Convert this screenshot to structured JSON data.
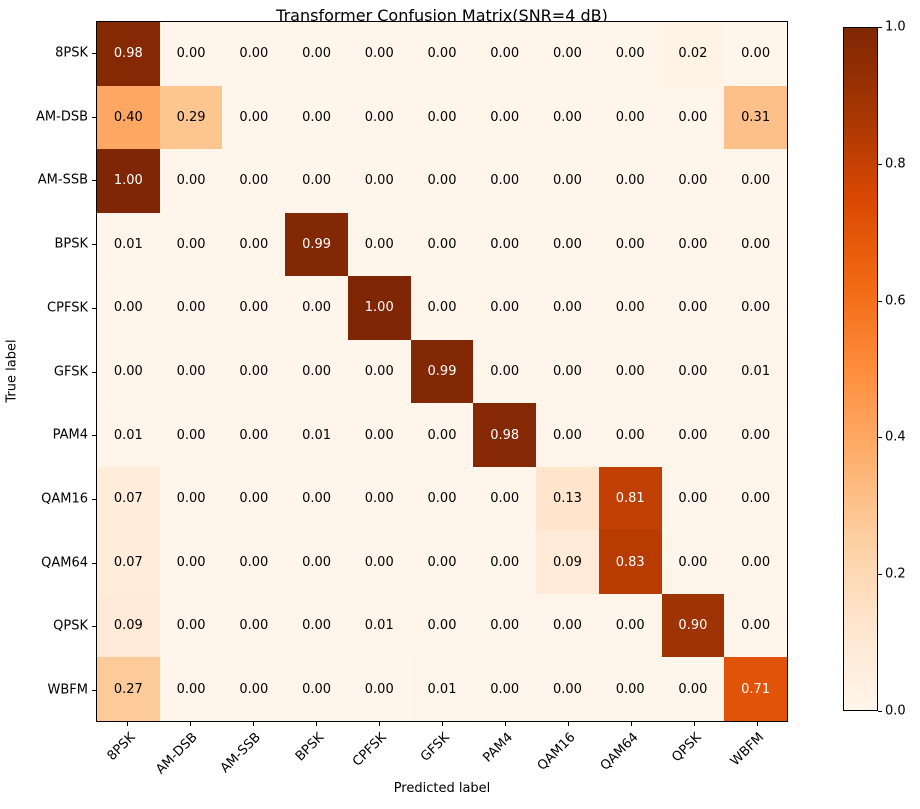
{
  "chart_data": {
    "type": "heatmap",
    "title": "Transformer Confusion Matrix(SNR=4 dB)",
    "xlabel": "Predicted label",
    "ylabel": "True label",
    "categories": [
      "8PSK",
      "AM-DSB",
      "AM-SSB",
      "BPSK",
      "CPFSK",
      "GFSK",
      "PAM4",
      "QAM16",
      "QAM64",
      "QPSK",
      "WBFM"
    ],
    "matrix": [
      [
        0.98,
        0.0,
        0.0,
        0.0,
        0.0,
        0.0,
        0.0,
        0.0,
        0.0,
        0.02,
        0.0
      ],
      [
        0.4,
        0.29,
        0.0,
        0.0,
        0.0,
        0.0,
        0.0,
        0.0,
        0.0,
        0.0,
        0.31
      ],
      [
        1.0,
        0.0,
        0.0,
        0.0,
        0.0,
        0.0,
        0.0,
        0.0,
        0.0,
        0.0,
        0.0
      ],
      [
        0.01,
        0.0,
        0.0,
        0.99,
        0.0,
        0.0,
        0.0,
        0.0,
        0.0,
        0.0,
        0.0
      ],
      [
        0.0,
        0.0,
        0.0,
        0.0,
        1.0,
        0.0,
        0.0,
        0.0,
        0.0,
        0.0,
        0.0
      ],
      [
        0.0,
        0.0,
        0.0,
        0.0,
        0.0,
        0.99,
        0.0,
        0.0,
        0.0,
        0.0,
        0.01
      ],
      [
        0.01,
        0.0,
        0.0,
        0.01,
        0.0,
        0.0,
        0.98,
        0.0,
        0.0,
        0.0,
        0.0
      ],
      [
        0.07,
        0.0,
        0.0,
        0.0,
        0.0,
        0.0,
        0.0,
        0.13,
        0.81,
        0.0,
        0.0
      ],
      [
        0.07,
        0.0,
        0.0,
        0.0,
        0.0,
        0.0,
        0.0,
        0.09,
        0.83,
        0.0,
        0.0
      ],
      [
        0.09,
        0.0,
        0.0,
        0.0,
        0.01,
        0.0,
        0.0,
        0.0,
        0.0,
        0.9,
        0.0
      ],
      [
        0.27,
        0.0,
        0.0,
        0.0,
        0.0,
        0.01,
        0.0,
        0.0,
        0.0,
        0.0,
        0.71
      ]
    ],
    "value_format_decimals": 2,
    "colormap": {
      "name": "Oranges",
      "stops": [
        [
          0.0,
          "#fff5eb"
        ],
        [
          0.125,
          "#fee6ce"
        ],
        [
          0.25,
          "#fdd0a2"
        ],
        [
          0.375,
          "#fdae6b"
        ],
        [
          0.5,
          "#fd8d3c"
        ],
        [
          0.625,
          "#f16913"
        ],
        [
          0.75,
          "#d94801"
        ],
        [
          0.875,
          "#a63603"
        ],
        [
          1.0,
          "#7f2704"
        ]
      ],
      "text_color_dark": "#000000",
      "text_color_light": "#ffffff",
      "text_switch_threshold": 0.5
    },
    "colorbar": {
      "ticks": [
        "1.0",
        "0.8",
        "0.6",
        "0.4",
        "0.2",
        "0.0"
      ],
      "tick_values": [
        1.0,
        0.8,
        0.6,
        0.4,
        0.2,
        0.0
      ],
      "range": [
        0.0,
        1.0
      ],
      "position": "right"
    },
    "value_range": [
      0.0,
      1.0
    ],
    "grid": false,
    "x_tick_rotation_deg": 45
  }
}
